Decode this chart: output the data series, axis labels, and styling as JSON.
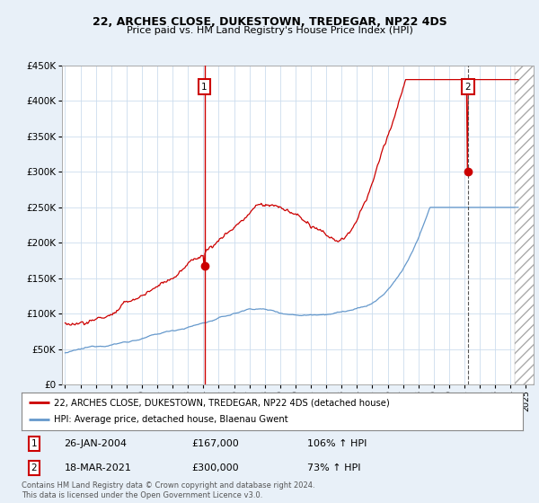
{
  "title1": "22, ARCHES CLOSE, DUKESTOWN, TREDEGAR, NP22 4DS",
  "title2": "Price paid vs. HM Land Registry's House Price Index (HPI)",
  "legend_line1": "22, ARCHES CLOSE, DUKESTOWN, TREDEGAR, NP22 4DS (detached house)",
  "legend_line2": "HPI: Average price, detached house, Blaenau Gwent",
  "ann1_date": "26-JAN-2004",
  "ann1_price": "£167,000",
  "ann1_hpi": "106% ↑ HPI",
  "ann2_date": "18-MAR-2021",
  "ann2_price": "£300,000",
  "ann2_hpi": "73% ↑ HPI",
  "footer": "Contains HM Land Registry data © Crown copyright and database right 2024.\nThis data is licensed under the Open Government Licence v3.0.",
  "red_color": "#cc0000",
  "blue_color": "#6699cc",
  "fig_bg": "#e8f0f8",
  "plot_bg": "#ffffff",
  "ylim": [
    0,
    450000
  ],
  "yticks": [
    0,
    50000,
    100000,
    150000,
    200000,
    250000,
    300000,
    350000,
    400000,
    450000
  ],
  "vline1_x": 2004.07,
  "vline2_x": 2021.21,
  "sale1_price": 167000,
  "sale1_year": 2004.07,
  "sale2_price": 300000,
  "sale2_year": 2021.21,
  "hatch_start": 2024.25,
  "xmin": 1994.8,
  "xmax": 2025.5
}
